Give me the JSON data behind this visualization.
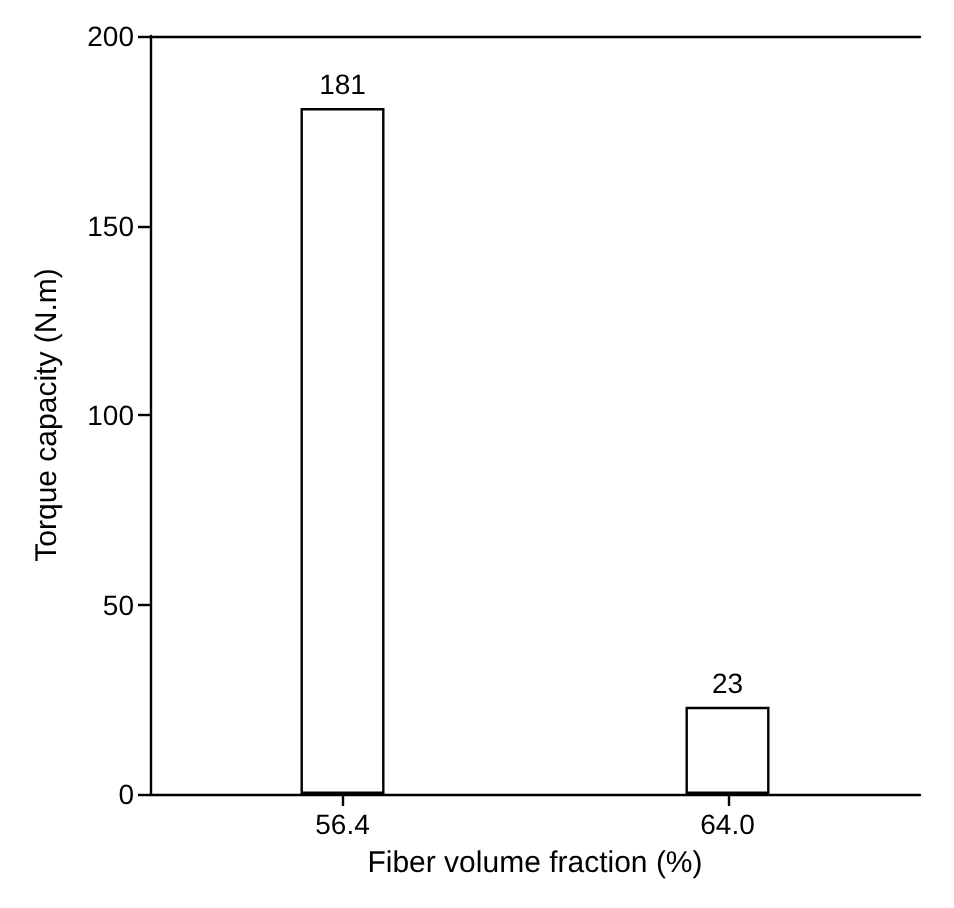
{
  "chart_data": {
    "type": "bar",
    "xlabel": "Fiber volume fraction (%)",
    "ylabel": "Torque capacity (N.m)",
    "categories": [
      "56.4",
      "64.0"
    ],
    "values": [
      181,
      23
    ],
    "color": "#ffffff",
    "ylim": [
      0,
      200
    ],
    "yticks": [
      0,
      50,
      100,
      150,
      200
    ],
    "data_labels": true,
    "grid": false
  }
}
